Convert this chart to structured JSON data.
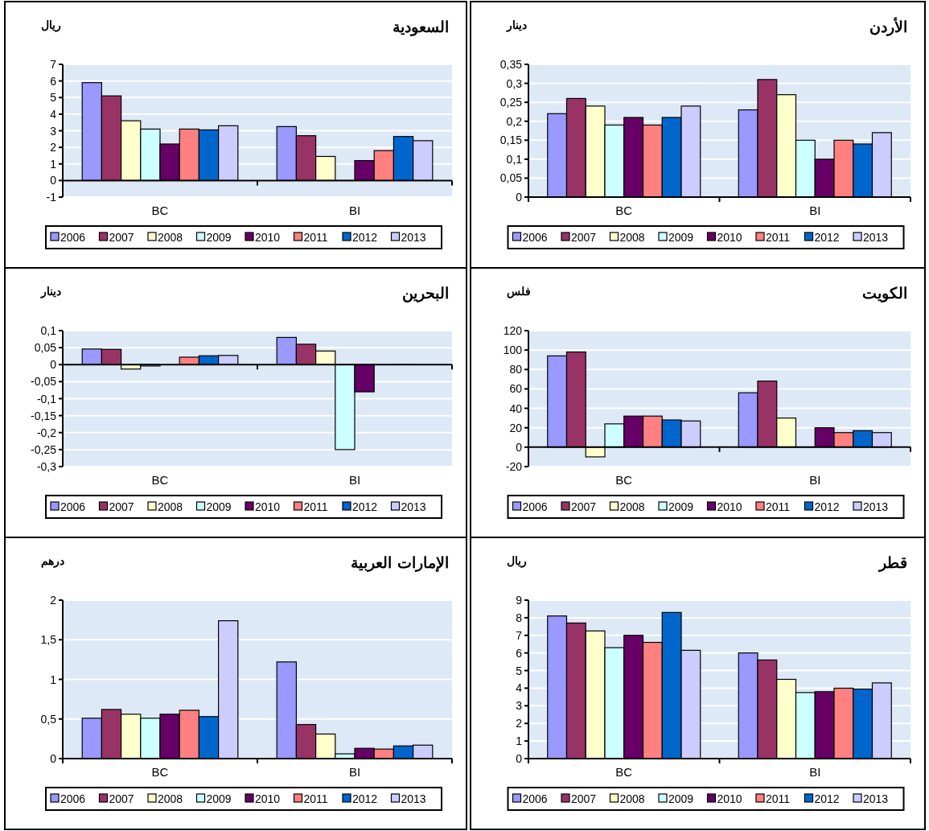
{
  "chart_data": [
    {
      "type": "bar",
      "title": "السعودية",
      "ylabel": "ريال",
      "categories": [
        "BC",
        "BI"
      ],
      "ylim": [
        -1,
        7
      ],
      "yticks": [
        -1,
        0,
        1,
        2,
        3,
        4,
        5,
        6,
        7
      ],
      "grid": "y",
      "legend": "bottom",
      "series": [
        {
          "name": "2006",
          "color": "#9999ff",
          "values": [
            5.9,
            3.25
          ]
        },
        {
          "name": "2007",
          "color": "#993366",
          "values": [
            5.1,
            2.7
          ]
        },
        {
          "name": "2008",
          "color": "#ffffcc",
          "values": [
            3.6,
            1.45
          ]
        },
        {
          "name": "2009",
          "color": "#ccffff",
          "values": [
            3.1,
            0
          ]
        },
        {
          "name": "2010",
          "color": "#660066",
          "values": [
            2.2,
            1.2
          ]
        },
        {
          "name": "2011",
          "color": "#ff8080",
          "values": [
            3.1,
            1.8
          ]
        },
        {
          "name": "2012",
          "color": "#0066cc",
          "values": [
            3.05,
            2.65
          ]
        },
        {
          "name": "2013",
          "color": "#ccccff",
          "values": [
            3.3,
            2.4
          ]
        }
      ]
    },
    {
      "type": "bar",
      "title": "الأردن",
      "ylabel": "دينار",
      "categories": [
        "BC",
        "BI"
      ],
      "ylim": [
        0,
        0.35
      ],
      "yticks": [
        0,
        {
          "value": 0.05,
          "label": "0,05"
        },
        {
          "value": 0.1,
          "label": "0,1"
        },
        {
          "value": 0.15,
          "label": "0,15"
        },
        {
          "value": 0.2,
          "label": "0,2"
        },
        {
          "value": 0.25,
          "label": "0,25"
        },
        {
          "value": 0.3,
          "label": "0,3"
        },
        {
          "value": 0.35,
          "label": "0,35"
        }
      ],
      "grid": "y",
      "legend": "bottom",
      "series": [
        {
          "name": "2006",
          "color": "#9999ff",
          "values": [
            0.22,
            0.23
          ]
        },
        {
          "name": "2007",
          "color": "#993366",
          "values": [
            0.26,
            0.31
          ]
        },
        {
          "name": "2008",
          "color": "#ffffcc",
          "values": [
            0.24,
            0.27
          ]
        },
        {
          "name": "2009",
          "color": "#ccffff",
          "values": [
            0.19,
            0.15
          ]
        },
        {
          "name": "2010",
          "color": "#660066",
          "values": [
            0.21,
            0.1
          ]
        },
        {
          "name": "2011",
          "color": "#ff8080",
          "values": [
            0.19,
            0.15
          ]
        },
        {
          "name": "2012",
          "color": "#0066cc",
          "values": [
            0.21,
            0.14
          ]
        },
        {
          "name": "2013",
          "color": "#ccccff",
          "values": [
            0.24,
            0.17
          ]
        }
      ]
    },
    {
      "type": "bar",
      "title": "البحرين",
      "ylabel": "دينار",
      "categories": [
        "BC",
        "BI"
      ],
      "ylim": [
        -0.3,
        0.1
      ],
      "yticks": [
        {
          "value": -0.3,
          "label": "-0,3"
        },
        {
          "value": -0.25,
          "label": "-0,25"
        },
        {
          "value": -0.2,
          "label": "-0,2"
        },
        {
          "value": -0.15,
          "label": "-0,15"
        },
        {
          "value": -0.1,
          "label": "-0,1"
        },
        {
          "value": -0.05,
          "label": "-0,05"
        },
        0,
        {
          "value": 0.05,
          "label": "0,05"
        },
        {
          "value": 0.1,
          "label": "0,1"
        }
      ],
      "grid": "y",
      "legend": "bottom",
      "series": [
        {
          "name": "2006",
          "color": "#9999ff",
          "values": [
            0.046,
            0.08
          ]
        },
        {
          "name": "2007",
          "color": "#993366",
          "values": [
            0.045,
            0.06
          ]
        },
        {
          "name": "2008",
          "color": "#ffffcc",
          "values": [
            -0.013,
            0.04
          ]
        },
        {
          "name": "2009",
          "color": "#ccffff",
          "values": [
            -0.004,
            -0.25
          ]
        },
        {
          "name": "2010",
          "color": "#660066",
          "values": [
            null,
            -0.08
          ]
        },
        {
          "name": "2011",
          "color": "#ff8080",
          "values": [
            0.022,
            null
          ]
        },
        {
          "name": "2012",
          "color": "#0066cc",
          "values": [
            0.026,
            0
          ]
        },
        {
          "name": "2013",
          "color": "#ccccff",
          "values": [
            0.027,
            null
          ]
        }
      ]
    },
    {
      "type": "bar",
      "title": "الكويت",
      "ylabel": "فلس",
      "categories": [
        "BC",
        "BI"
      ],
      "ylim": [
        -20,
        120
      ],
      "yticks": [
        -20,
        0,
        20,
        40,
        60,
        80,
        100,
        120
      ],
      "grid": "y",
      "legend": "bottom",
      "series": [
        {
          "name": "2006",
          "color": "#9999ff",
          "values": [
            94,
            56
          ]
        },
        {
          "name": "2007",
          "color": "#993366",
          "values": [
            98,
            68
          ]
        },
        {
          "name": "2008",
          "color": "#ffffcc",
          "values": [
            -10,
            30
          ]
        },
        {
          "name": "2009",
          "color": "#ccffff",
          "values": [
            24,
            0
          ]
        },
        {
          "name": "2010",
          "color": "#660066",
          "values": [
            32,
            20
          ]
        },
        {
          "name": "2011",
          "color": "#ff8080",
          "values": [
            32,
            15
          ]
        },
        {
          "name": "2012",
          "color": "#0066cc",
          "values": [
            28,
            17
          ]
        },
        {
          "name": "2013",
          "color": "#ccccff",
          "values": [
            27,
            15
          ]
        }
      ]
    },
    {
      "type": "bar",
      "title": "الإمارات العربية",
      "ylabel": "درهم",
      "categories": [
        "BC",
        "BI"
      ],
      "ylim": [
        0,
        2
      ],
      "yticks": [
        0,
        {
          "value": 0.5,
          "label": "0,5"
        },
        1,
        {
          "value": 1.5,
          "label": "1,5"
        },
        2
      ],
      "grid": "y",
      "legend": "bottom",
      "series": [
        {
          "name": "2006",
          "color": "#9999ff",
          "values": [
            0.51,
            1.22
          ]
        },
        {
          "name": "2007",
          "color": "#993366",
          "values": [
            0.62,
            0.43
          ]
        },
        {
          "name": "2008",
          "color": "#ffffcc",
          "values": [
            0.56,
            0.31
          ]
        },
        {
          "name": "2009",
          "color": "#ccffff",
          "values": [
            0.51,
            0.06
          ]
        },
        {
          "name": "2010",
          "color": "#660066",
          "values": [
            0.56,
            0.13
          ]
        },
        {
          "name": "2011",
          "color": "#ff8080",
          "values": [
            0.61,
            0.12
          ]
        },
        {
          "name": "2012",
          "color": "#0066cc",
          "values": [
            0.53,
            0.16
          ]
        },
        {
          "name": "2013",
          "color": "#ccccff",
          "values": [
            1.74,
            0.17
          ]
        }
      ]
    },
    {
      "type": "bar",
      "title": "قطر",
      "ylabel": "ريال",
      "categories": [
        "BC",
        "BI"
      ],
      "ylim": [
        0,
        9
      ],
      "yticks": [
        0,
        1,
        2,
        3,
        4,
        5,
        6,
        7,
        8,
        9
      ],
      "grid": "y",
      "legend": "bottom",
      "series": [
        {
          "name": "2006",
          "color": "#9999ff",
          "values": [
            8.1,
            6.0
          ]
        },
        {
          "name": "2007",
          "color": "#993366",
          "values": [
            7.7,
            5.6
          ]
        },
        {
          "name": "2008",
          "color": "#ffffcc",
          "values": [
            7.25,
            4.5
          ]
        },
        {
          "name": "2009",
          "color": "#ccffff",
          "values": [
            6.3,
            3.75
          ]
        },
        {
          "name": "2010",
          "color": "#660066",
          "values": [
            7.0,
            3.8
          ]
        },
        {
          "name": "2011",
          "color": "#ff8080",
          "values": [
            6.6,
            4.0
          ]
        },
        {
          "name": "2012",
          "color": "#0066cc",
          "values": [
            8.3,
            3.95
          ]
        },
        {
          "name": "2013",
          "color": "#ccccff",
          "values": [
            6.15,
            4.3
          ]
        }
      ]
    }
  ]
}
